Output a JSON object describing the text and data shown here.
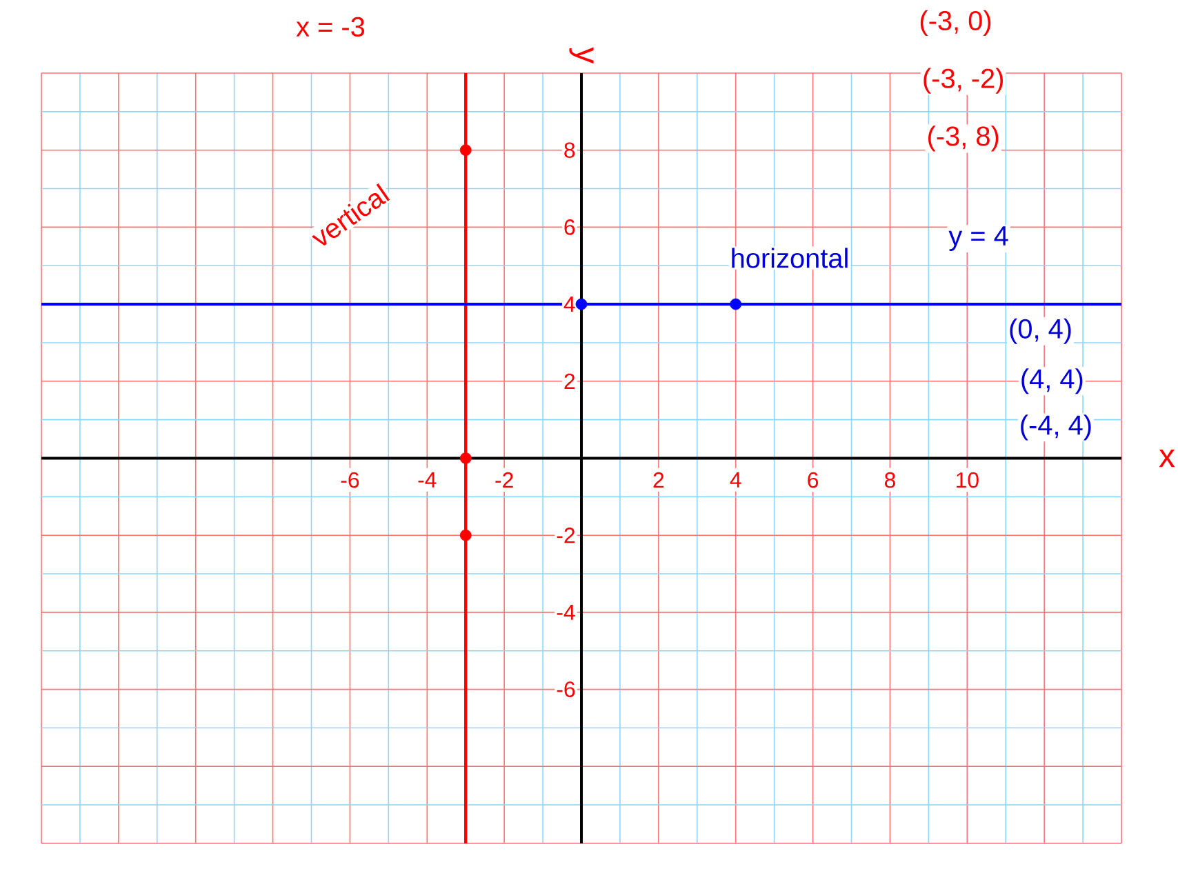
{
  "chart_data": {
    "type": "line",
    "xlabel": "x",
    "ylabel": "y",
    "xlim": [
      -14,
      14
    ],
    "ylim": [
      -10,
      10
    ],
    "xticks": [
      {
        "value": -14,
        "label": null
      },
      {
        "value": -13,
        "label": null
      },
      {
        "value": -12,
        "label": null
      },
      {
        "value": -11,
        "label": null
      },
      {
        "value": -10,
        "label": null
      },
      {
        "value": -9,
        "label": null
      },
      {
        "value": -8,
        "label": null
      },
      {
        "value": -7,
        "label": null
      },
      -6,
      {
        "value": -5,
        "label": null
      },
      -4,
      {
        "value": -3,
        "label": null
      },
      -2,
      {
        "value": -1,
        "label": null
      },
      {
        "value": 0,
        "label": null
      },
      {
        "value": 1,
        "label": null
      },
      2,
      {
        "value": 3,
        "label": null
      },
      4,
      {
        "value": 5,
        "label": null
      },
      6,
      {
        "value": 7,
        "label": null
      },
      8,
      {
        "value": 9,
        "label": null
      },
      10,
      {
        "value": 11,
        "label": null
      },
      {
        "value": 12,
        "label": null
      },
      {
        "value": 13,
        "label": null
      },
      {
        "value": 14,
        "label": null
      }
    ],
    "yticks": [
      {
        "value": -10,
        "label": null
      },
      {
        "value": -9,
        "label": null
      },
      {
        "value": -8,
        "label": null
      },
      {
        "value": -7,
        "label": null
      },
      -6,
      {
        "value": -5,
        "label": null
      },
      -4,
      {
        "value": -3,
        "label": null
      },
      -2,
      {
        "value": -1,
        "label": null
      },
      {
        "value": 0,
        "label": null
      },
      {
        "value": 1,
        "label": null
      },
      2,
      {
        "value": 3,
        "label": null
      },
      4,
      {
        "value": 5,
        "label": null
      },
      6,
      {
        "value": 7,
        "label": null
      },
      8,
      {
        "value": 9,
        "label": null
      },
      {
        "value": 10,
        "label": null
      }
    ],
    "grid": true,
    "series": [
      {
        "color": "#ff0000",
        "marker": "none",
        "x": [
          -3,
          -3
        ],
        "values": [
          -10,
          10
        ]
      },
      {
        "type": "scatter",
        "marker": "circle",
        "color": "#ff0000",
        "x": [
          -3,
          -3,
          -3
        ],
        "values": [
          8,
          0,
          -2
        ]
      },
      {
        "color": "#0000ff",
        "marker": "none",
        "x": [
          -14,
          14
        ],
        "values": [
          4,
          4
        ]
      },
      {
        "type": "scatter",
        "marker": "circle",
        "color": "#0000ff",
        "x": [
          0,
          4
        ],
        "values": [
          4,
          4
        ]
      }
    ],
    "annotations": [
      "x = -3",
      "vertical",
      "horizontal",
      "y = 4",
      "(-3, 0)",
      "(-3, -2)",
      "(-3, 8)",
      "(0, 4)",
      "(4, 4)",
      "(-4, 4)"
    ]
  }
}
